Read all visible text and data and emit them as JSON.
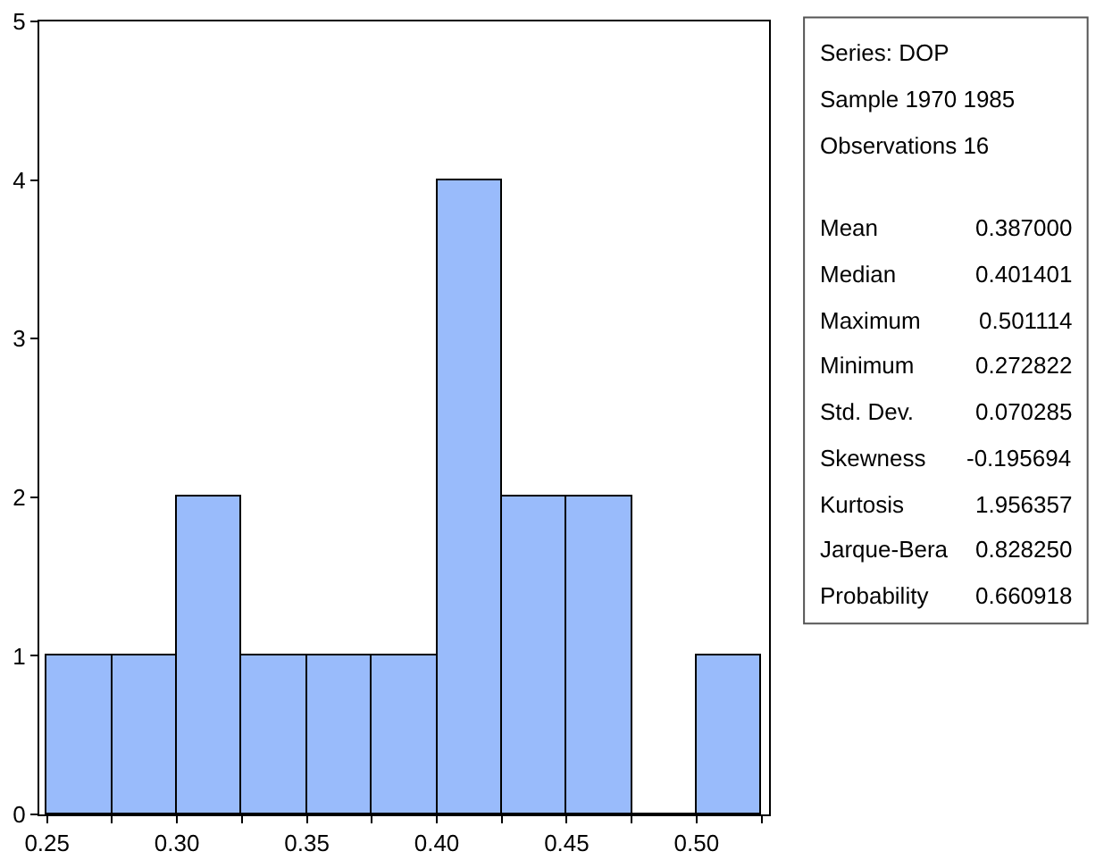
{
  "chart_data": [
    {
      "type": "histogram",
      "bins": [
        0.25,
        0.275,
        0.3,
        0.325,
        0.35,
        0.375,
        0.4,
        0.425,
        0.45,
        0.475,
        0.5,
        0.525
      ],
      "values": [
        1,
        1,
        2,
        1,
        1,
        1,
        4,
        2,
        2,
        0,
        1
      ],
      "color": "#99bbfb",
      "xlim": [
        0.247,
        0.528
      ],
      "ylim": [
        0,
        5
      ],
      "xticks": [
        0.25,
        {
          "value": 0.275,
          "label": null
        },
        {
          "value": 0.3,
          "label": "0.30"
        },
        {
          "value": 0.325,
          "label": null
        },
        0.35,
        {
          "value": 0.375,
          "label": null
        },
        {
          "value": 0.4,
          "label": "0.40"
        },
        {
          "value": 0.425,
          "label": null
        },
        0.45,
        {
          "value": 0.475,
          "label": null
        },
        {
          "value": 0.5,
          "label": "0.50"
        },
        {
          "value": 0.525,
          "label": null
        }
      ],
      "yticks": [
        0,
        1,
        2,
        3,
        4,
        5
      ],
      "grid": false,
      "legend": false
    },
    {
      "type": "other",
      "annotations": [
        "Series: DOP",
        "Sample 1970 1985",
        "Observations 16"
      ],
      "categories": [
        "Mean",
        "Median",
        "Maximum",
        "Minimum",
        "Std. Dev.",
        "Skewness",
        "Kurtosis",
        "Jarque-Bera",
        "Probability"
      ],
      "value_labels": [
        "0.387000",
        "0.401401",
        "0.501114",
        "0.272822",
        "0.070285",
        "-0.195694",
        "1.956357",
        "0.828250",
        "0.660918"
      ]
    }
  ]
}
